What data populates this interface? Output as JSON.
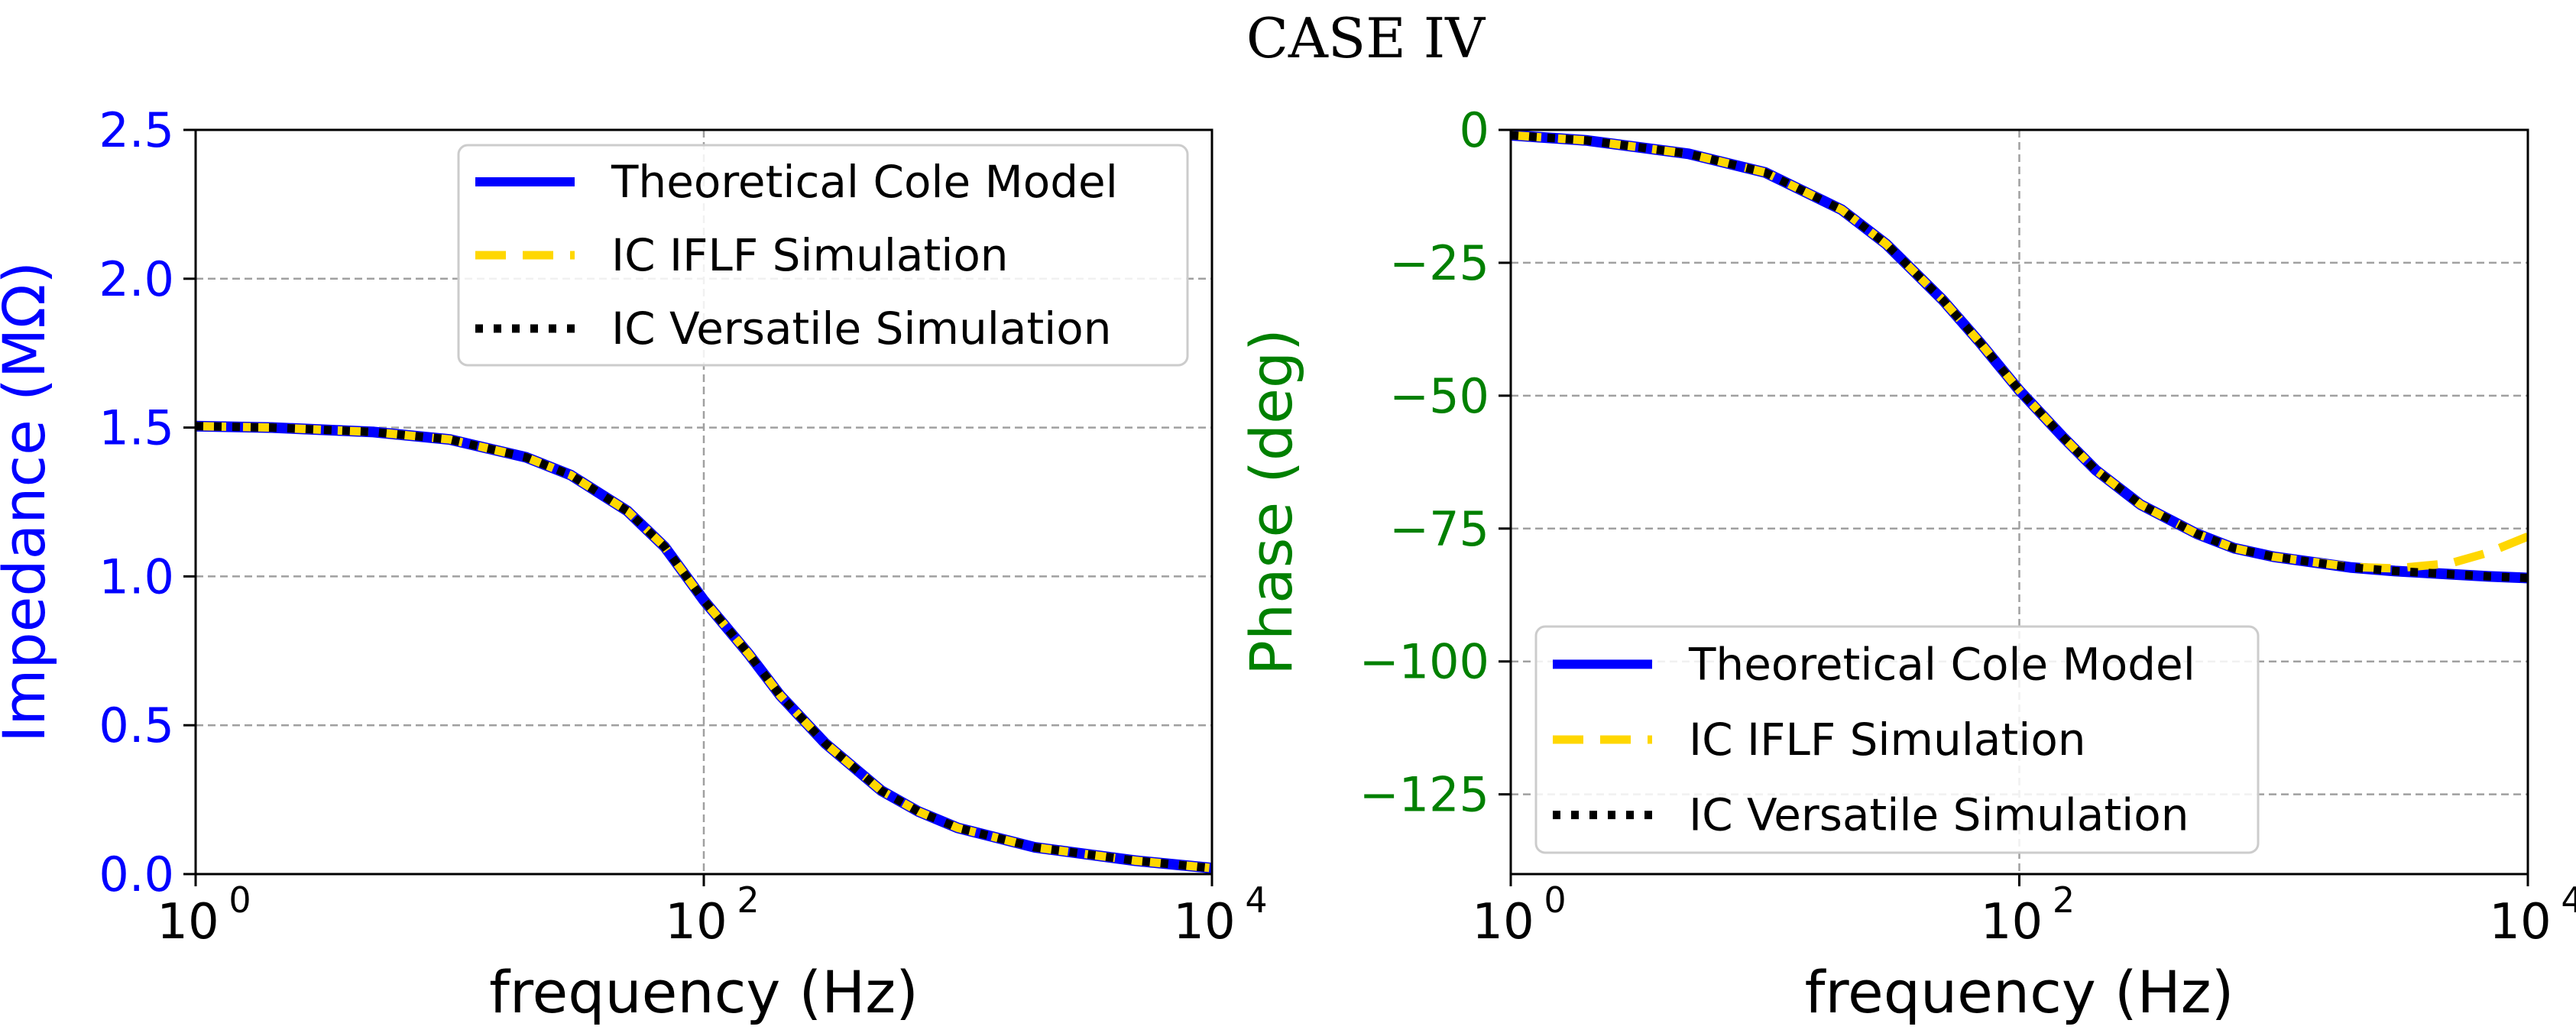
{
  "figure_title": "CASE IV",
  "chart_data": [
    {
      "type": "line",
      "xscale": "log",
      "xlim": [
        1,
        10000
      ],
      "ylim": [
        0,
        2.5
      ],
      "xlabel": "frequency (Hz)",
      "ylabel": "Impedance (MΩ)",
      "ylabel_color": "#0000ff",
      "grid": true,
      "legend_position": "top-right",
      "xticks": [
        {
          "value": 1,
          "base": "10",
          "exp": "0"
        },
        {
          "value": 100,
          "base": "10",
          "exp": "2"
        },
        {
          "value": 10000,
          "base": "10",
          "exp": "4"
        }
      ],
      "yticks": [
        {
          "value": 0,
          "label": "0.0"
        },
        {
          "value": 0.5,
          "label": "0.5"
        },
        {
          "value": 1.0,
          "label": "1.0"
        },
        {
          "value": 1.5,
          "label": "1.5"
        },
        {
          "value": 2.0,
          "label": "2.0"
        },
        {
          "value": 2.5,
          "label": "2.5"
        }
      ],
      "ytick_color": "#0000ff",
      "x": [
        1,
        2,
        5,
        10,
        20,
        30,
        50,
        70,
        100,
        150,
        200,
        300,
        500,
        700,
        1000,
        2000,
        5000,
        10000
      ],
      "series": [
        {
          "name": "Theoretical Cole Model",
          "color": "#0000ff",
          "style": "solid",
          "values": [
            1.505,
            1.5,
            1.485,
            1.46,
            1.4,
            1.34,
            1.22,
            1.1,
            0.92,
            0.74,
            0.6,
            0.44,
            0.28,
            0.21,
            0.155,
            0.09,
            0.045,
            0.02
          ]
        },
        {
          "name": "IC IFLF Simulation",
          "color": "#ffd700",
          "style": "dashed",
          "values": [
            1.505,
            1.5,
            1.485,
            1.46,
            1.4,
            1.34,
            1.22,
            1.1,
            0.92,
            0.74,
            0.6,
            0.44,
            0.28,
            0.21,
            0.155,
            0.09,
            0.045,
            0.02
          ]
        },
        {
          "name": "IC Versatile Simulation",
          "color": "#000000",
          "style": "dotted",
          "values": [
            1.505,
            1.5,
            1.485,
            1.46,
            1.4,
            1.34,
            1.22,
            1.1,
            0.92,
            0.74,
            0.6,
            0.44,
            0.28,
            0.21,
            0.155,
            0.09,
            0.045,
            0.02
          ]
        }
      ]
    },
    {
      "type": "line",
      "xscale": "log",
      "xlim": [
        1,
        10000
      ],
      "ylim": [
        -140,
        0
      ],
      "xlabel": "frequency (Hz)",
      "ylabel": "Phase (deg)",
      "ylabel_color": "#008000",
      "grid": true,
      "legend_position": "bottom-left",
      "xticks": [
        {
          "value": 1,
          "base": "10",
          "exp": "0"
        },
        {
          "value": 100,
          "base": "10",
          "exp": "2"
        },
        {
          "value": 10000,
          "base": "10",
          "exp": "4"
        }
      ],
      "yticks": [
        {
          "value": 0,
          "label": "0"
        },
        {
          "value": -25,
          "label": "−25"
        },
        {
          "value": -50,
          "label": "−50"
        },
        {
          "value": -75,
          "label": "−75"
        },
        {
          "value": -100,
          "label": "−100"
        },
        {
          "value": -125,
          "label": "−125"
        }
      ],
      "ytick_color": "#008000",
      "x": [
        1,
        2,
        5,
        10,
        20,
        30,
        50,
        70,
        100,
        150,
        200,
        300,
        500,
        700,
        1000,
        2000,
        3000,
        5000,
        7000,
        10000
      ],
      "series": [
        {
          "name": "Theoretical Cole Model",
          "color": "#0000ff",
          "style": "solid",
          "values": [
            -1,
            -2,
            -4.5,
            -8,
            -15,
            -21.5,
            -32,
            -40,
            -49,
            -58,
            -64,
            -70.5,
            -76,
            -78.7,
            -80.3,
            -82.3,
            -83,
            -83.6,
            -84,
            -84.3
          ]
        },
        {
          "name": "IC IFLF Simulation",
          "color": "#ffd700",
          "style": "dashed",
          "values": [
            -1,
            -2,
            -4.5,
            -8,
            -15,
            -21.5,
            -32,
            -40,
            -49,
            -58,
            -64,
            -70.5,
            -76,
            -78.7,
            -80.3,
            -82.2,
            -82.5,
            -81.5,
            -79.5,
            -76.5
          ]
        },
        {
          "name": "IC Versatile Simulation",
          "color": "#000000",
          "style": "dotted",
          "values": [
            -1,
            -2,
            -4.5,
            -8,
            -15,
            -21.5,
            -32,
            -40,
            -49,
            -58,
            -64,
            -70.5,
            -76,
            -78.7,
            -80.3,
            -82.3,
            -83,
            -83.6,
            -84,
            -84.3
          ]
        }
      ]
    }
  ]
}
